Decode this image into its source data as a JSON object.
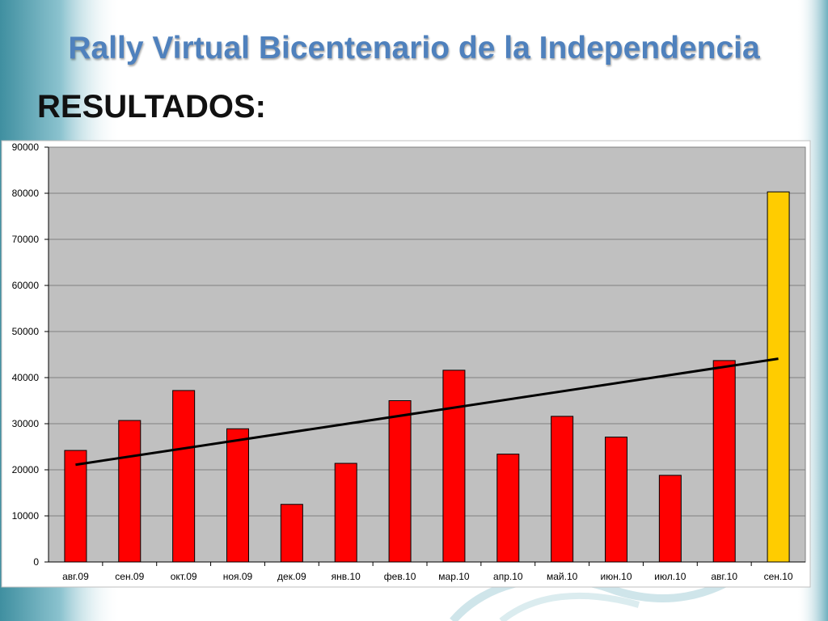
{
  "slide": {
    "title": "Rally Virtual Bicentenario de la Independencia",
    "subtitle": "RESULTADOS:"
  },
  "colors": {
    "title": "#4f81bd",
    "bar": "#ff0000",
    "highlight_bar": "#ffcc00",
    "plot_background": "#c0c0c0",
    "trendline": "#000000"
  },
  "chart_data": {
    "type": "bar",
    "categories": [
      "авг.09",
      "сен.09",
      "окт.09",
      "ноя.09",
      "дек.09",
      "янв.10",
      "фев.10",
      "мар.10",
      "апр.10",
      "май.10",
      "июн.10",
      "июл.10",
      "авг.10",
      "сен.10"
    ],
    "series": [
      {
        "values": [
          24200,
          30700,
          37200,
          28900,
          12500,
          21400,
          35000,
          41600,
          23400,
          31600,
          27100,
          18800,
          43700,
          80300
        ],
        "highlight_index": 13
      }
    ],
    "trendline": {
      "type": "linear",
      "start": 21100,
      "end": 44100
    },
    "yticks": [
      0,
      10000,
      20000,
      30000,
      40000,
      50000,
      60000,
      70000,
      80000,
      90000
    ],
    "ylim": [
      0,
      90000
    ],
    "grid": true,
    "legend": "none"
  }
}
